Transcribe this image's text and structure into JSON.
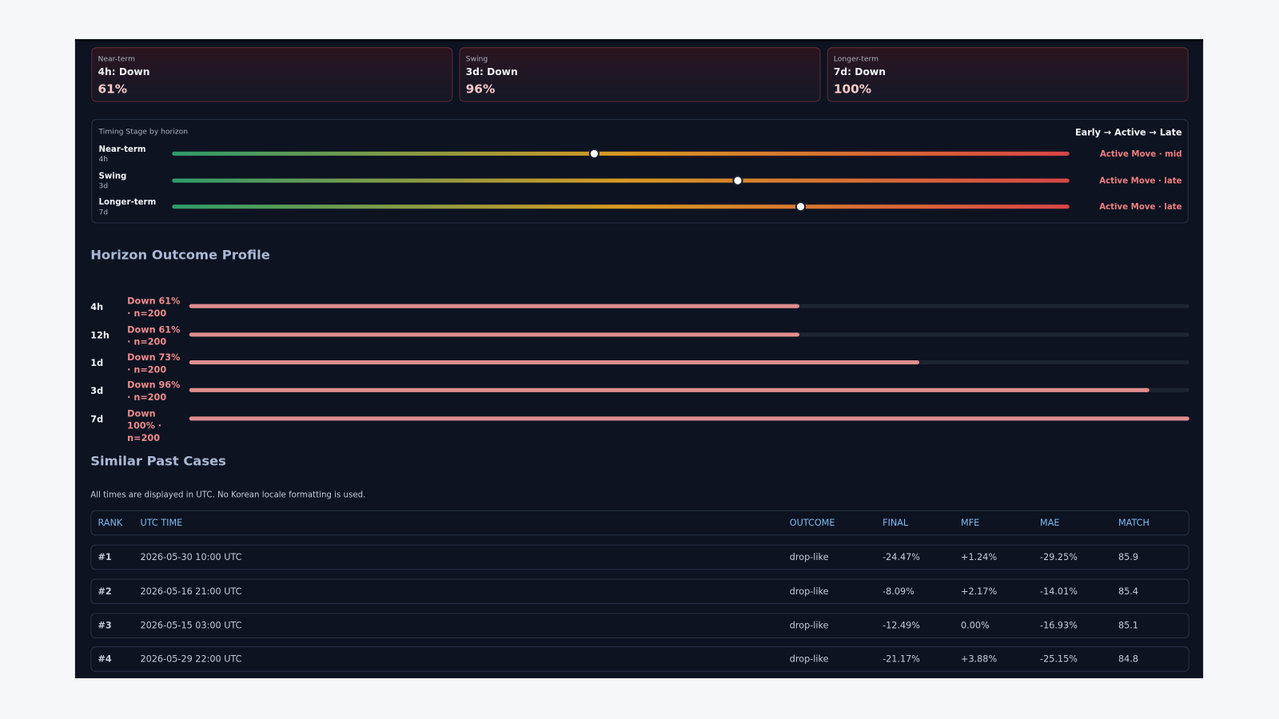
{
  "cards": [
    {
      "label": "Near-term",
      "title": "4h: Down",
      "value": "61%"
    },
    {
      "label": "Swing",
      "title": "3d: Down",
      "value": "96%"
    },
    {
      "label": "Longer-term",
      "title": "7d: Down",
      "value": "100%"
    }
  ],
  "timing": {
    "title": "Timing Stage by horizon",
    "legend": "Early → Active → Late",
    "rows": [
      {
        "name": "Near-term",
        "horizon": "4h",
        "position": 0.47,
        "stage": "Active Move · mid"
      },
      {
        "name": "Swing",
        "horizon": "3d",
        "position": 0.63,
        "stage": "Active Move · late"
      },
      {
        "name": "Longer-term",
        "horizon": "7d",
        "position": 0.7,
        "stage": "Active Move · late"
      }
    ]
  },
  "outcome": {
    "title": "Horizon Outcome Profile",
    "rows": [
      {
        "horizon": "4h",
        "label": "Down 61% · n=200",
        "value": 61
      },
      {
        "horizon": "12h",
        "label": "Down 61% · n=200",
        "value": 61
      },
      {
        "horizon": "1d",
        "label": "Down 73% · n=200",
        "value": 73
      },
      {
        "horizon": "3d",
        "label": "Down 96% · n=200",
        "value": 96
      },
      {
        "horizon": "7d",
        "label": "Down 100% · n=200",
        "value": 100
      }
    ]
  },
  "cases": {
    "title": "Similar Past Cases",
    "note": "All times are displayed in UTC. No Korean locale formatting is used.",
    "columns": [
      "RANK",
      "UTC TIME",
      "OUTCOME",
      "FINAL",
      "MFE",
      "MAE",
      "MATCH"
    ],
    "rows": [
      [
        "#1",
        "2026-05-30 10:00 UTC",
        "drop-like",
        "-24.47%",
        "+1.24%",
        "-29.25%",
        "85.9"
      ],
      [
        "#2",
        "2026-05-16 21:00 UTC",
        "drop-like",
        "-8.09%",
        "+2.17%",
        "-14.01%",
        "85.4"
      ],
      [
        "#3",
        "2026-05-15 03:00 UTC",
        "drop-like",
        "-12.49%",
        "0.00%",
        "-16.93%",
        "85.1"
      ],
      [
        "#4",
        "2026-05-29 22:00 UTC",
        "drop-like",
        "-21.17%",
        "+3.88%",
        "-25.15%",
        "84.8"
      ]
    ]
  }
}
